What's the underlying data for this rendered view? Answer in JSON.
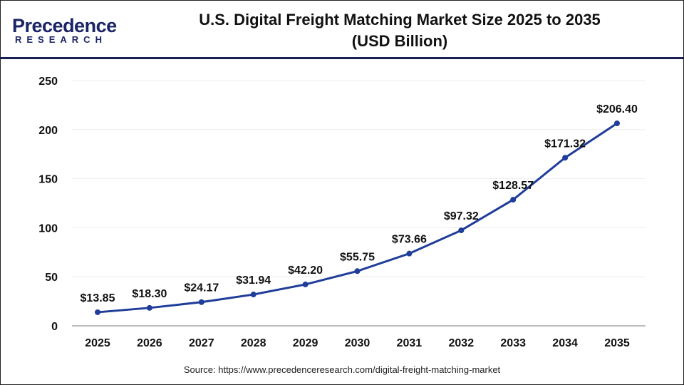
{
  "brand": {
    "logo_text_top": "Precedence",
    "logo_text_bottom": "RESEARCH",
    "colors": {
      "navy": "#1a2466",
      "blue": "#2c49c9"
    }
  },
  "header": {
    "title_line1": "U.S. Digital Freight Matching Market Size 2025 to 2035",
    "title_line2": "(USD Billion)"
  },
  "source": "Source: https://www.precedenceresearch.com/digital-freight-matching-market",
  "chart_data": {
    "type": "line",
    "title": "U.S. Digital Freight Matching Market Size 2025 to 2035 (USD Billion)",
    "categories": [
      "2025",
      "2026",
      "2027",
      "2028",
      "2029",
      "2030",
      "2031",
      "2032",
      "2033",
      "2034",
      "2035"
    ],
    "values": [
      13.85,
      18.3,
      24.17,
      31.94,
      42.2,
      55.75,
      73.66,
      97.32,
      128.57,
      171.32,
      206.4
    ],
    "data_labels": [
      "$13.85",
      "$18.30",
      "$24.17",
      "$31.94",
      "$42.20",
      "$55.75",
      "$73.66",
      "$97.32",
      "$128.57",
      "$171.32",
      "$206.40"
    ],
    "yticks": [
      "0",
      "50",
      "100",
      "150",
      "200",
      "250"
    ],
    "ylim": [
      0,
      250
    ],
    "grid": true,
    "line_color": "#1f3d99"
  }
}
